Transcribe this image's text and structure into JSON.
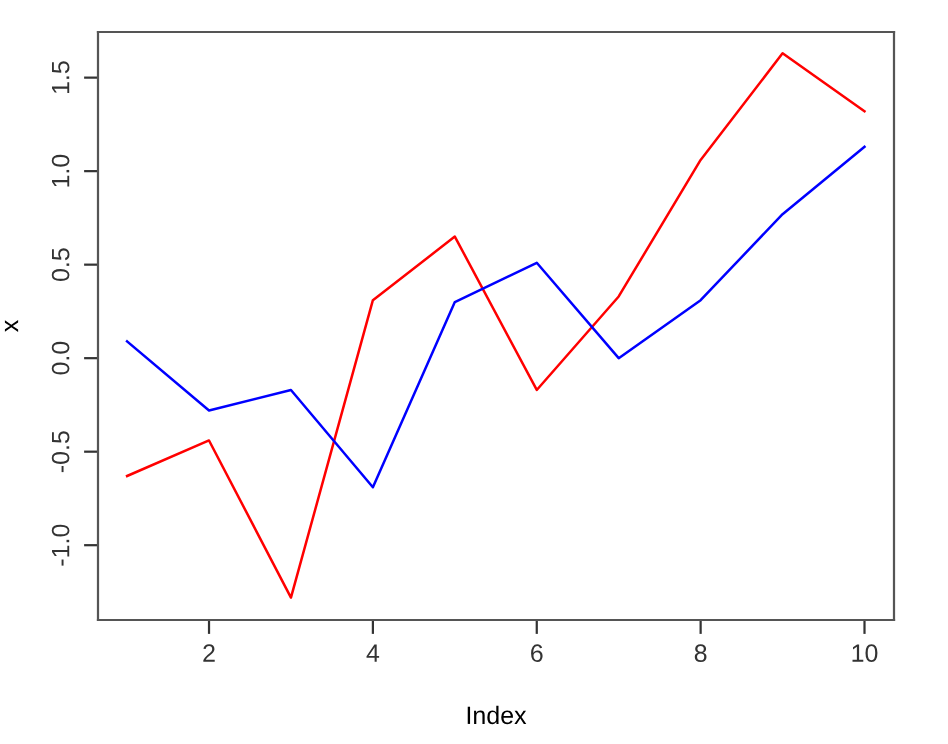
{
  "chart_data": {
    "type": "line",
    "xlabel": "Index",
    "ylabel": "x",
    "x": [
      1,
      2,
      3,
      4,
      5,
      6,
      7,
      8,
      9,
      10
    ],
    "series": [
      {
        "color": "#ff0000",
        "values": [
          -0.63,
          -0.44,
          -1.28,
          0.31,
          0.65,
          -0.17,
          0.33,
          1.06,
          1.63,
          1.32
        ]
      },
      {
        "color": "#0000ff",
        "values": [
          0.09,
          -0.28,
          -0.17,
          -0.69,
          0.3,
          0.51,
          0.0,
          0.31,
          0.77,
          1.13
        ]
      }
    ],
    "xlim": [
      0.645,
      10.36
    ],
    "ylim": [
      -1.4,
      1.744
    ],
    "xticks": [
      2,
      4,
      6,
      8,
      10
    ],
    "yticks": [
      {
        "value": -1.0,
        "label": "-1.0"
      },
      {
        "value": -0.5,
        "label": "-0.5"
      },
      {
        "value": 0.0,
        "label": "0.0"
      },
      {
        "value": 0.5,
        "label": "0.5"
      },
      {
        "value": 1.0,
        "label": "1.0"
      },
      {
        "value": 1.5,
        "label": "1.5"
      }
    ],
    "grid": false,
    "marker": "none",
    "line_style": "solid",
    "legend": false
  }
}
